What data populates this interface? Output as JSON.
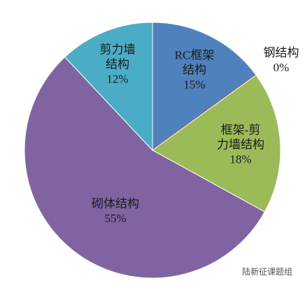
{
  "chart_data": {
    "type": "pie",
    "categories": [
      "RC框架结构",
      "钢结构",
      "框架-剪力墙结构",
      "砌体结构",
      "剪力墙结构"
    ],
    "values": [
      15,
      0,
      18,
      55,
      12
    ],
    "value_labels": [
      "15%",
      "0%",
      "18%",
      "55%",
      "12%"
    ],
    "colors": [
      "#4f81bd",
      "#c0504d",
      "#9bbb59",
      "#8064a2",
      "#4bacc6"
    ],
    "watermark": "陆新征课题组"
  }
}
